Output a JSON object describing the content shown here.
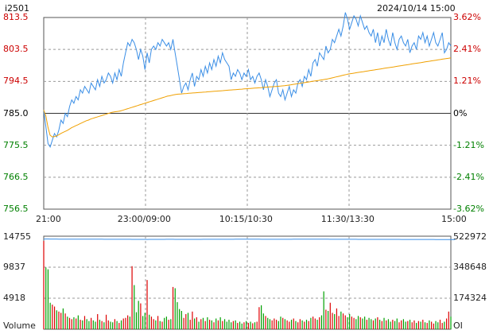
{
  "header": {
    "symbol": "i2501",
    "datetime": "2024/10/14 15:00"
  },
  "price_axis": {
    "left_labels": [
      "813.5",
      "803.5",
      "794.5",
      "785.0",
      "775.5",
      "766.5",
      "756.5"
    ],
    "right_labels": [
      "3.62%",
      "2.41%",
      "1.21%",
      "0%",
      "-1.21%",
      "-2.41%",
      "-3.62%"
    ],
    "colors": [
      "#cc0000",
      "#cc0000",
      "#cc0000",
      "#000000",
      "#008000",
      "#008000",
      "#008000"
    ]
  },
  "time_axis": {
    "labels": [
      "21:00",
      "23:00/09:00",
      "10:15/10:30",
      "11:30/13:30",
      "15:00"
    ]
  },
  "volume_axis": {
    "left_labels": [
      "14755",
      "9837",
      "4918",
      "Volume"
    ],
    "right_labels": [
      "522972",
      "348648",
      "174324",
      "OI"
    ]
  },
  "colors": {
    "price": "#3a8ee6",
    "avg": "#f0a000",
    "up": "#dd0000",
    "down": "#00a000",
    "oi": "#3a8ee6",
    "grid": "#999999"
  },
  "chart_data": [
    {
      "type": "line",
      "title": "i2501",
      "prev_close": 785.0,
      "ylim": [
        756.5,
        813.5
      ],
      "series": [
        {
          "key": "price",
          "values": [
            786,
            781,
            776,
            775,
            777,
            779,
            778,
            780,
            783,
            782,
            785,
            784,
            787,
            789,
            788,
            790,
            789,
            792,
            791,
            793,
            792,
            791,
            794,
            793,
            792,
            795,
            793,
            796,
            794,
            795,
            797,
            796,
            794,
            797,
            795,
            798,
            796,
            800,
            803,
            806,
            805,
            807,
            806,
            804,
            801,
            804,
            802,
            798,
            803,
            800,
            804,
            805,
            804,
            806,
            805,
            807,
            806,
            805,
            806,
            804,
            807,
            803,
            799,
            795,
            791,
            793,
            794,
            792,
            795,
            797,
            793,
            796,
            795,
            798,
            796,
            799,
            797,
            800,
            798,
            801,
            799,
            802,
            800,
            803,
            801,
            800,
            799,
            795,
            797,
            796,
            798,
            797,
            795,
            797,
            796,
            798,
            795,
            796,
            794,
            796,
            797,
            795,
            792,
            795,
            793,
            790,
            792,
            794,
            795,
            791,
            790,
            792,
            789,
            791,
            793,
            790,
            792,
            791,
            794,
            795,
            793,
            796,
            795,
            798,
            796,
            800,
            801,
            799,
            803,
            802,
            801,
            805,
            803,
            804,
            807,
            806,
            808,
            810,
            808,
            811,
            815,
            813,
            810,
            812,
            814,
            813,
            811,
            814,
            812,
            810,
            811,
            809,
            808,
            810,
            806,
            809,
            805,
            808,
            806,
            810,
            807,
            805,
            809,
            806,
            804,
            807,
            808,
            806,
            805,
            807,
            803,
            805,
            806,
            804,
            808,
            807,
            809,
            806,
            808,
            805,
            807,
            809,
            806,
            805,
            807,
            809,
            803,
            804,
            806,
            805
          ],
          "style": "line"
        },
        {
          "key": "avg",
          "values": [
            786,
            784.2,
            780.8,
            778.5,
            778.0,
            778.1,
            778.3,
            778.6,
            779.0,
            779.3,
            779.6,
            779.9,
            780.3,
            780.7,
            781.0,
            781.3,
            781.6,
            781.9,
            782.2,
            782.5,
            782.8,
            783.0,
            783.3,
            783.5,
            783.7,
            783.9,
            784.1,
            784.3,
            784.5,
            784.7,
            784.9,
            785.1,
            785.3,
            785.4,
            785.5,
            785.6,
            785.7,
            785.9,
            786.1,
            786.3,
            786.5,
            786.7,
            786.9,
            787.1,
            787.3,
            787.5,
            787.7,
            787.9,
            788.1,
            788.3,
            788.5,
            788.7,
            788.9,
            789.1,
            789.3,
            789.5,
            789.7,
            789.9,
            790.1,
            790.2,
            790.35,
            790.5,
            790.6,
            790.7,
            790.75,
            790.8,
            790.85,
            790.9,
            790.95,
            791.0,
            791.05,
            791.1,
            791.15,
            791.2,
            791.25,
            791.3,
            791.35,
            791.4,
            791.45,
            791.5,
            791.55,
            791.6,
            791.65,
            791.7,
            791.75,
            791.8,
            791.85,
            791.9,
            791.95,
            792.0,
            792.05,
            792.1,
            792.15,
            792.2,
            792.25,
            792.3,
            792.35,
            792.4,
            792.45,
            792.5,
            792.55,
            792.6,
            792.65,
            792.7,
            792.75,
            792.8,
            792.85,
            792.9,
            792.95,
            793.0,
            793.05,
            793.1,
            793.15,
            793.2,
            793.3,
            793.4,
            793.5,
            793.6,
            793.7,
            793.8,
            793.9,
            794.0,
            794.1,
            794.2,
            794.3,
            794.4,
            794.5,
            794.6,
            794.7,
            794.8,
            794.9,
            795.0,
            795.1,
            795.2,
            795.35,
            795.5,
            795.65,
            795.8,
            795.95,
            796.1,
            796.25,
            796.4,
            796.55,
            796.7,
            796.8,
            796.9,
            797.0,
            797.1,
            797.2,
            797.3,
            797.4,
            797.5,
            797.6,
            797.7,
            797.8,
            797.9,
            798.0,
            798.1,
            798.2,
            798.3,
            798.4,
            798.5,
            798.6,
            798.7,
            798.8,
            798.9,
            799.0,
            799.1,
            799.2,
            799.3,
            799.4,
            799.5,
            799.6,
            799.7,
            799.8,
            799.9,
            800.0,
            800.1,
            800.2,
            800.3,
            800.4,
            800.5,
            800.6,
            800.7,
            800.8,
            800.9,
            801.0,
            801.1,
            801.2,
            801.3,
            801.4,
            801.5
          ],
          "style": "line"
        }
      ]
    },
    {
      "type": "bar",
      "title": "Volume",
      "ylim": [
        0,
        14755
      ],
      "oi_ylim": [
        0,
        522972
      ],
      "volume": [
        14000,
        9800,
        9500,
        4200,
        3900,
        3600,
        3000,
        2800,
        2600,
        3300,
        2500,
        2000,
        1800,
        1600,
        1900,
        1700,
        2200,
        1500,
        1400,
        2100,
        1600,
        1300,
        1800,
        1400,
        1200,
        2400,
        1500,
        1300,
        1100,
        2300,
        1400,
        1200,
        1100,
        1600,
        1300,
        1000,
        1400,
        1700,
        1800,
        2200,
        2000,
        10000,
        7000,
        2700,
        4500,
        4100,
        2100,
        2600,
        7800,
        2300,
        2000,
        1600,
        1400,
        2100,
        1300,
        1200,
        1800,
        2000,
        1500,
        1600,
        6700,
        6500,
        4300,
        3200,
        2900,
        1800,
        2400,
        2600,
        1500,
        2800,
        1700,
        1900,
        1200,
        1600,
        1800,
        1300,
        1900,
        1500,
        1400,
        1100,
        1700,
        1400,
        1900,
        1300,
        1600,
        1200,
        1500,
        1100,
        1300,
        1400,
        1000,
        1200,
        900,
        1100,
        1300,
        1000,
        1200,
        950,
        1100,
        1200,
        3500,
        3800,
        2500,
        2100,
        1800,
        1600,
        1400,
        1700,
        1500,
        1300,
        2000,
        1800,
        1600,
        1400,
        1200,
        1500,
        1700,
        1300,
        1100,
        1600,
        1400,
        1200,
        1500,
        1300,
        1800,
        2000,
        1700,
        1500,
        1900,
        2200,
        6000,
        3100,
        2900,
        4200,
        2600,
        2400,
        3300,
        2100,
        2800,
        2500,
        2200,
        1900,
        2400,
        2000,
        1800,
        1600,
        2100,
        1900,
        1700,
        2000,
        1500,
        1800,
        1600,
        1400,
        1700,
        1900,
        1500,
        1300,
        1800,
        1400,
        1600,
        1200,
        1500,
        1300,
        1700,
        1100,
        1400,
        1600,
        1200,
        1300,
        1500,
        1100,
        1400,
        1000,
        1300,
        1200,
        1500,
        1100,
        1000,
        1400,
        1200,
        900,
        1300,
        1100,
        1500,
        1000,
        1200,
        1700,
        2800,
        2000
      ],
      "oi": [
        507000,
        507500,
        507300,
        507100,
        506900,
        506800,
        506700,
        506600,
        506500,
        506500,
        506400,
        506400,
        506300,
        506300,
        506200,
        506200,
        506100,
        506100,
        506100,
        506000,
        506000,
        506000,
        505900,
        505900,
        505900,
        505800,
        505800,
        505800,
        505700,
        505700,
        505700,
        505700,
        505600,
        505600,
        505600,
        505600,
        505500,
        505500,
        505500,
        505500,
        505400,
        505200,
        505000,
        505100,
        505000,
        504900,
        504900,
        505000,
        504800,
        504900,
        505000,
        505100,
        505100,
        505200,
        505200,
        505300,
        505300,
        505400,
        505400,
        505500,
        505400,
        505300,
        505200,
        505100,
        505100,
        505000,
        505000,
        505100,
        505100,
        505200,
        505200,
        505300,
        505300,
        505300,
        505400,
        505400,
        505400,
        505500,
        505500,
        505500,
        505500,
        505600,
        505600,
        505600,
        505600,
        505700,
        505700,
        505700,
        505700,
        505800,
        505800,
        505800,
        505800,
        505900,
        505900,
        505900,
        505900,
        506000,
        506000,
        506000,
        505800,
        505700,
        505600,
        505600,
        505500,
        505500,
        505500,
        505500,
        505600,
        505600,
        505600,
        505600,
        505700,
        505700,
        505700,
        505700,
        505800,
        505800,
        505800,
        505800,
        505800,
        505900,
        505900,
        505900,
        505900,
        506000,
        506000,
        506000,
        506000,
        506000,
        505900,
        505800,
        505800,
        505700,
        505700,
        505600,
        505600,
        505600,
        505500,
        505500,
        505500,
        505500,
        505400,
        505400,
        505400,
        505400,
        505300,
        505300,
        505300,
        505300,
        505200,
        505200,
        505200,
        505200,
        505100,
        505100,
        505100,
        505100,
        505000,
        505000,
        505000,
        505000,
        504900,
        504900,
        504900,
        504900,
        504800,
        504800,
        504800,
        504800,
        504700,
        504700,
        504700,
        504700,
        504600,
        504600,
        504600,
        504600,
        504500,
        504500,
        504500,
        504500,
        504400,
        504400,
        504400,
        504400,
        504300,
        504300,
        504300,
        504300,
        504200,
        504100
      ]
    }
  ]
}
